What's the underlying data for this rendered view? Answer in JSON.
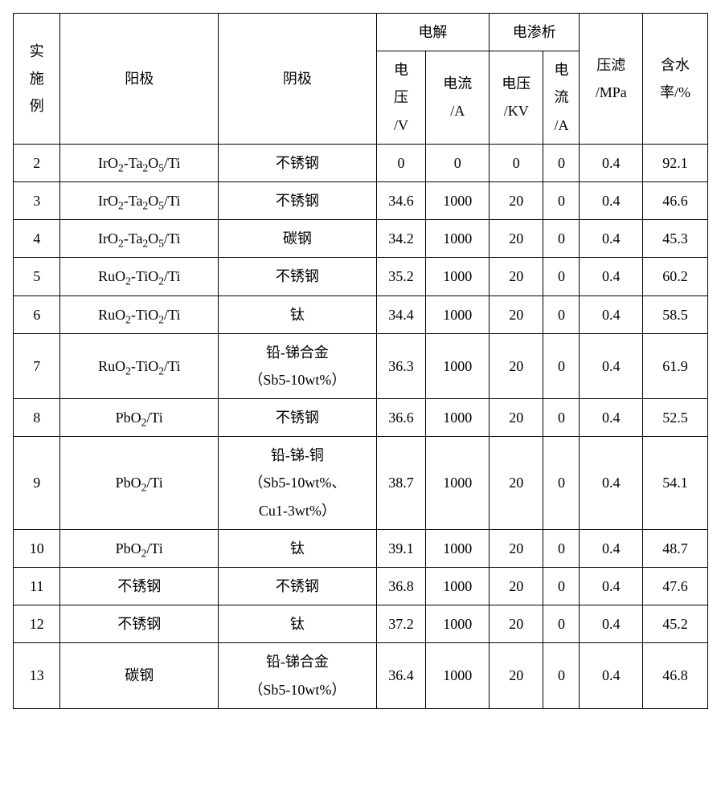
{
  "headers": {
    "example": "实\n施\n例",
    "anode": "阳极",
    "cathode": "阴极",
    "electrolysis": "电解",
    "electrodialysis": "电渗析",
    "e_voltage": "电\n压\n/V",
    "e_current": "电流\n/A",
    "d_voltage": "电压\n/KV",
    "d_current": "电\n流\n/A",
    "pressure": "压滤\n/MPa",
    "water": "含水\n率/%"
  },
  "rows": [
    {
      "n": "2",
      "anode": "IrO<sub>2</sub>-Ta<sub>2</sub>O<sub>5</sub>/Ti",
      "cathode": "不锈钢",
      "ev": "0",
      "ea": "0",
      "dv": "0",
      "da": "0",
      "p": "0.4",
      "w": "92.1"
    },
    {
      "n": "3",
      "anode": "IrO<sub>2</sub>-Ta<sub>2</sub>O<sub>5</sub>/Ti",
      "cathode": "不锈钢",
      "ev": "34.6",
      "ea": "1000",
      "dv": "20",
      "da": "0",
      "p": "0.4",
      "w": "46.6"
    },
    {
      "n": "4",
      "anode": "IrO<sub>2</sub>-Ta<sub>2</sub>O<sub>5</sub>/Ti",
      "cathode": "碳钢",
      "ev": "34.2",
      "ea": "1000",
      "dv": "20",
      "da": "0",
      "p": "0.4",
      "w": "45.3"
    },
    {
      "n": "5",
      "anode": "RuO<sub>2</sub>-TiO<sub>2</sub>/Ti",
      "cathode": "不锈钢",
      "ev": "35.2",
      "ea": "1000",
      "dv": "20",
      "da": "0",
      "p": "0.4",
      "w": "60.2"
    },
    {
      "n": "6",
      "anode": "RuO<sub>2</sub>-TiO<sub>2</sub>/Ti",
      "cathode": "钛",
      "ev": "34.4",
      "ea": "1000",
      "dv": "20",
      "da": "0",
      "p": "0.4",
      "w": "58.5"
    },
    {
      "n": "7",
      "anode": "RuO<sub>2</sub>-TiO<sub>2</sub>/Ti",
      "cathode": "铅-锑合金<br>（Sb5-10wt%）",
      "ev": "36.3",
      "ea": "1000",
      "dv": "20",
      "da": "0",
      "p": "0.4",
      "w": "61.9"
    },
    {
      "n": "8",
      "anode": "PbO<sub>2</sub>/Ti",
      "cathode": "不锈钢",
      "ev": "36.6",
      "ea": "1000",
      "dv": "20",
      "da": "0",
      "p": "0.4",
      "w": "52.5"
    },
    {
      "n": "9",
      "anode": "PbO<sub>2</sub>/Ti",
      "cathode": "铅-锑-铜<br>（Sb5-10wt%、<br>Cu1-3wt%）",
      "ev": "38.7",
      "ea": "1000",
      "dv": "20",
      "da": "0",
      "p": "0.4",
      "w": "54.1"
    },
    {
      "n": "10",
      "anode": "PbO<sub>2</sub>/Ti",
      "cathode": "钛",
      "ev": "39.1",
      "ea": "1000",
      "dv": "20",
      "da": "0",
      "p": "0.4",
      "w": "48.7"
    },
    {
      "n": "11",
      "anode": "不锈钢",
      "cathode": "不锈钢",
      "ev": "36.8",
      "ea": "1000",
      "dv": "20",
      "da": "0",
      "p": "0.4",
      "w": "47.6"
    },
    {
      "n": "12",
      "anode": "不锈钢",
      "cathode": "钛",
      "ev": "37.2",
      "ea": "1000",
      "dv": "20",
      "da": "0",
      "p": "0.4",
      "w": "45.2"
    },
    {
      "n": "13",
      "anode": "碳钢",
      "cathode": "铅-锑合金<br>（Sb5-10wt%）",
      "ev": "36.4",
      "ea": "1000",
      "dv": "20",
      "da": "0",
      "p": "0.4",
      "w": "46.8"
    }
  ]
}
